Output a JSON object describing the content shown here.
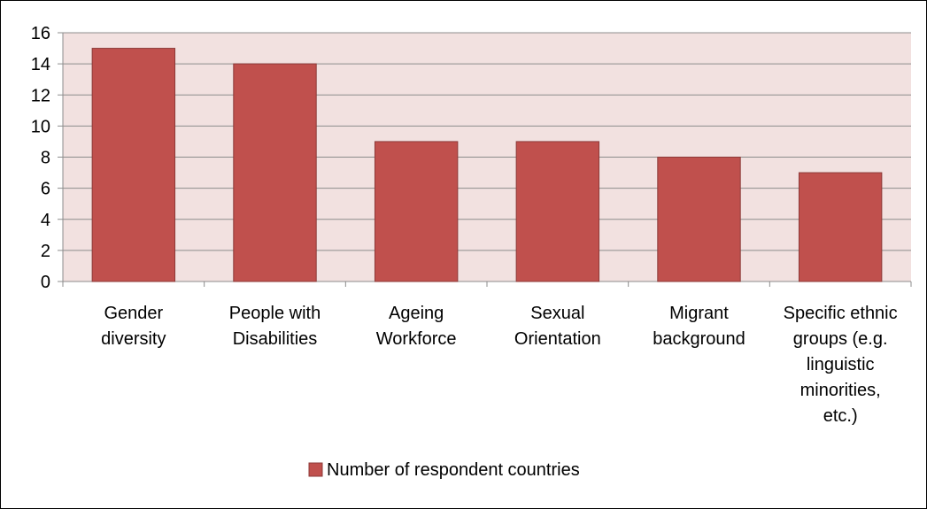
{
  "chart_data": {
    "type": "bar",
    "title": "",
    "xlabel": "",
    "ylabel": "",
    "categories": [
      [
        "Gender",
        "diversity"
      ],
      [
        "People with",
        "Disabilities"
      ],
      [
        "Ageing",
        "Workforce"
      ],
      [
        "Sexual",
        "Orientation"
      ],
      [
        "Migrant",
        "background"
      ],
      [
        "Specific ethnic",
        "groups (e.g.",
        "linguistic",
        "minorities,",
        "etc.)"
      ]
    ],
    "series": [
      {
        "name": "Number of respondent countries",
        "values": [
          15,
          14,
          9,
          9,
          8,
          7
        ],
        "color": "#c0504d"
      }
    ],
    "ylim": [
      0,
      16
    ],
    "yticks": [
      0,
      2,
      4,
      6,
      8,
      10,
      12,
      14,
      16
    ],
    "grid": true,
    "plot_background": "#f2e1e0",
    "legend": "bottom"
  }
}
